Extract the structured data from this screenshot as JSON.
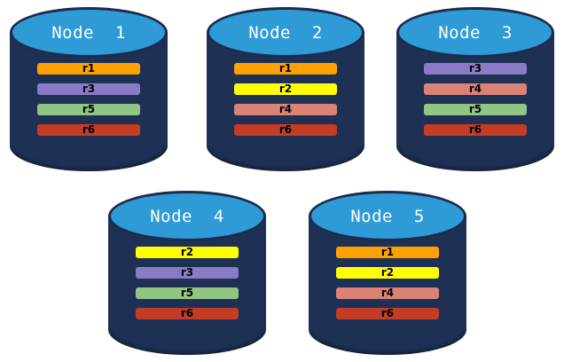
{
  "diagram": {
    "description_label": "database-node-replica-placement-diagram"
  },
  "colors": {
    "background": "#ffffff",
    "cylinder_body": "#1E3155",
    "cylinder_top": "#2E9BD6",
    "cylinder_outline": "#1B2C4E",
    "title_text": "#ffffff",
    "replica_label_text": "#000000"
  },
  "replica_colors": {
    "r1": "#FFA200",
    "r2": "#FFFF00",
    "r3": "#8A7CC4",
    "r4": "#DA8275",
    "r5": "#90C583",
    "r6": "#C33C23"
  },
  "nodes": [
    {
      "label": "Node  1",
      "replicas": [
        "r1",
        "r3",
        "r5",
        "r6"
      ]
    },
    {
      "label": "Node  2",
      "replicas": [
        "r1",
        "r2",
        "r4",
        "r6"
      ]
    },
    {
      "label": "Node  3",
      "replicas": [
        "r3",
        "r4",
        "r5",
        "r6"
      ]
    },
    {
      "label": "Node  4",
      "replicas": [
        "r2",
        "r3",
        "r5",
        "r6"
      ]
    },
    {
      "label": "Node  5",
      "replicas": [
        "r1",
        "r2",
        "r4",
        "r6"
      ]
    }
  ]
}
